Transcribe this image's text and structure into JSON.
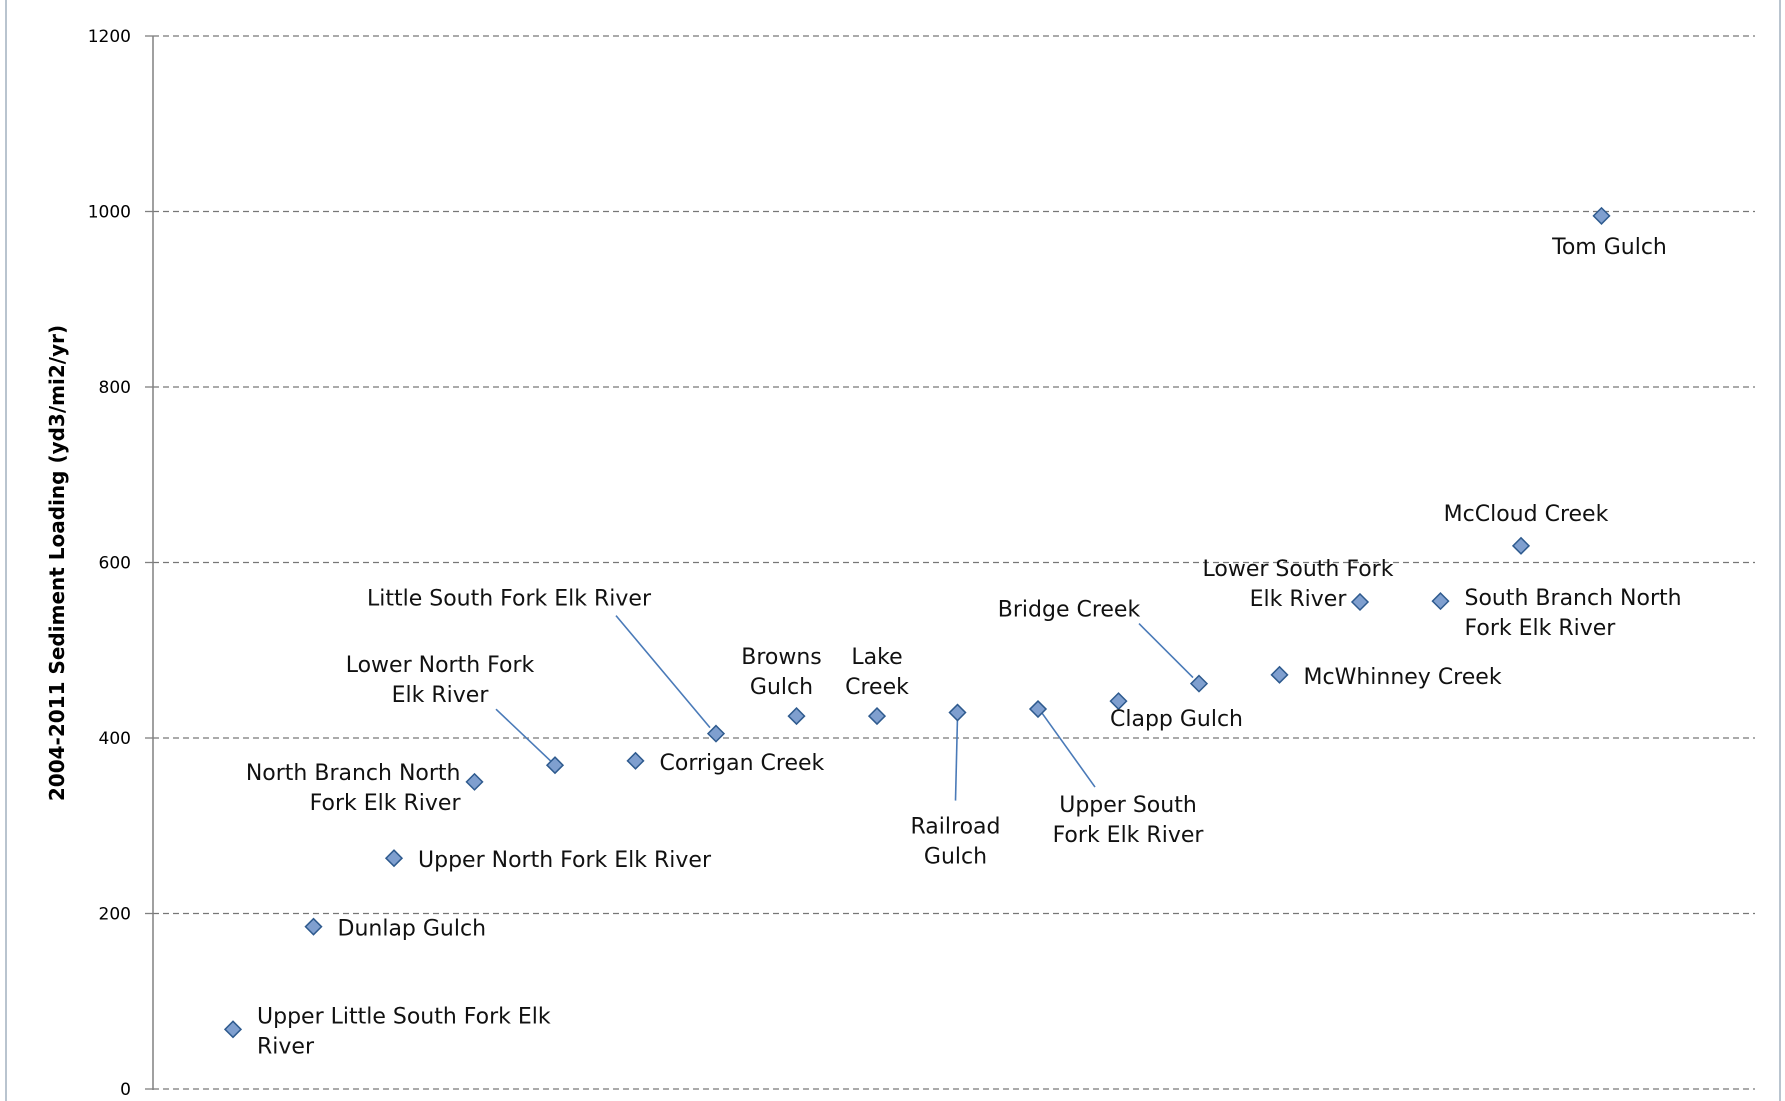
{
  "chart_data": {
    "type": "scatter",
    "title": "",
    "xlabel": "",
    "ylabel": "2004-2011 Sediment Loading (yd3/mi2/yr)",
    "ylim": [
      0,
      1200
    ],
    "yticks": [
      0,
      200,
      400,
      600,
      800,
      1000,
      1200
    ],
    "grid": "horizontal-dashed",
    "legend": "none",
    "marker": "diamond",
    "colors": {
      "marker_fill": "#7f9fcf",
      "marker_stroke": "#2e5a8e",
      "leader_line": "#4a7ab8",
      "grid": "#777777"
    },
    "points": [
      {
        "label": [
          "Upper Little South Fork Elk",
          "River"
        ],
        "x": 1,
        "y": 68
      },
      {
        "label": [
          "Dunlap Gulch"
        ],
        "x": 2,
        "y": 185
      },
      {
        "label": [
          "Upper North Fork Elk River"
        ],
        "x": 3,
        "y": 263
      },
      {
        "label": [
          "North Branch North",
          "Fork Elk River"
        ],
        "x": 4,
        "y": 350
      },
      {
        "label": [
          "Lower North Fork",
          "Elk River"
        ],
        "x": 5,
        "y": 369
      },
      {
        "label": [
          "Corrigan Creek"
        ],
        "x": 6,
        "y": 374
      },
      {
        "label": [
          "Little South Fork Elk River"
        ],
        "x": 7,
        "y": 405
      },
      {
        "label": [
          "Browns",
          "Gulch"
        ],
        "x": 8,
        "y": 425
      },
      {
        "label": [
          "Lake",
          "Creek"
        ],
        "x": 9,
        "y": 425
      },
      {
        "label": [
          "Railroad",
          "Gulch"
        ],
        "x": 10,
        "y": 429
      },
      {
        "label": [
          "Upper South",
          "Fork Elk River"
        ],
        "x": 11,
        "y": 433
      },
      {
        "label": [
          "Clapp Gulch"
        ],
        "x": 12,
        "y": 442
      },
      {
        "label": [
          "Bridge Creek"
        ],
        "x": 13,
        "y": 462
      },
      {
        "label": [
          "McWhinney Creek"
        ],
        "x": 14,
        "y": 472
      },
      {
        "label": [
          "Lower South Fork",
          "Elk River"
        ],
        "x": 15,
        "y": 555
      },
      {
        "label": [
          "South Branch North",
          "Fork Elk River"
        ],
        "x": 16,
        "y": 556
      },
      {
        "label": [
          "McCloud Creek"
        ],
        "x": 17,
        "y": 619
      },
      {
        "label": [
          "Tom Gulch"
        ],
        "x": 18,
        "y": 995
      }
    ]
  }
}
